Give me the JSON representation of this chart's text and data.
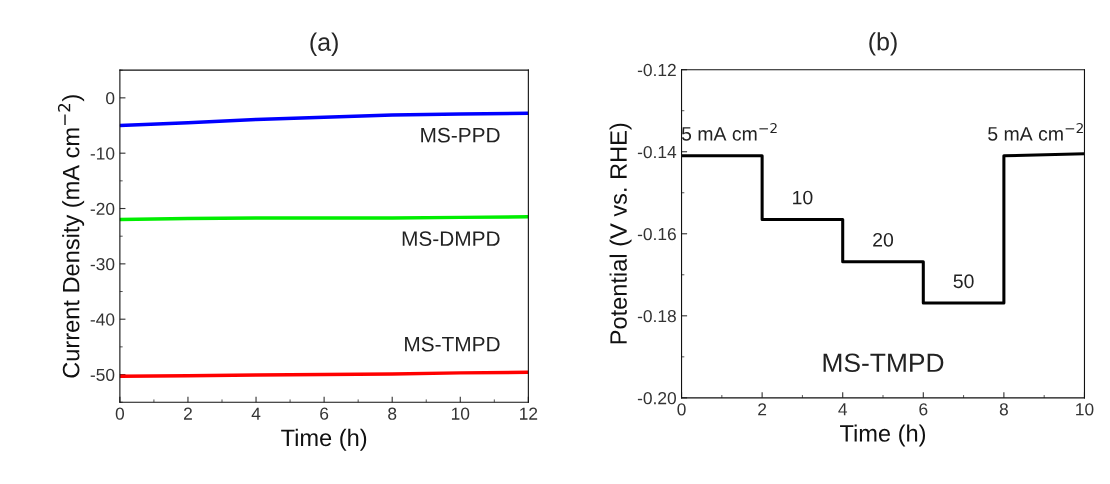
{
  "chart_data": [
    {
      "type": "line",
      "title": "(a)",
      "xlabel": "Time (h)",
      "ylabel": "Current Density (mA cm$^{−2}$)",
      "xlim": [
        0,
        12
      ],
      "xticks": [
        0,
        2,
        4,
        6,
        8,
        10,
        12
      ],
      "ylim": [
        -55,
        5
      ],
      "yticks": [
        -50,
        -40,
        -30,
        -20,
        -10,
        0
      ],
      "grid": false,
      "legend": false,
      "x": [
        0,
        2,
        4,
        6,
        8,
        10,
        12
      ],
      "series": [
        {
          "name": "MS-PPD",
          "color": "#0000ff",
          "values": [
            -5,
            -4.5,
            -3.9,
            -3.5,
            -3.1,
            -2.9,
            -2.8
          ]
        },
        {
          "name": "MS-DMPD",
          "color": "#00ee00",
          "values": [
            -22,
            -21.8,
            -21.7,
            -21.7,
            -21.7,
            -21.6,
            -21.5
          ]
        },
        {
          "name": "MS-TMPD",
          "color": "#ff0000",
          "values": [
            -50.3,
            -50.2,
            -50.1,
            -50,
            -49.9,
            -49.7,
            -49.6
          ]
        }
      ]
    },
    {
      "type": "line",
      "title": "(b)",
      "xlabel": "Time (h)",
      "ylabel": "Potential (V vs. RHE)",
      "xlim": [
        0,
        10
      ],
      "xticks": [
        0,
        2,
        4,
        6,
        8,
        10
      ],
      "ylim": [
        -0.2,
        -0.12
      ],
      "yticks": [
        {
          "value": -0.2,
          "label": "-0.20"
        },
        {
          "value": -0.18,
          "label": "-0.18"
        },
        {
          "value": -0.16,
          "label": "-0.16"
        },
        {
          "value": -0.14,
          "label": "-0.14"
        },
        {
          "value": -0.12,
          "label": "-0.12"
        }
      ],
      "grid": false,
      "legend": false,
      "series": [
        {
          "name": "MS-TMPD",
          "color": "#000000",
          "x": [
            0,
            2,
            2,
            4,
            4,
            6,
            6,
            8,
            8,
            10
          ],
          "values": [
            -0.141,
            -0.141,
            -0.1565,
            -0.1565,
            -0.1668,
            -0.1668,
            -0.1769,
            -0.1769,
            -0.141,
            -0.1405
          ]
        }
      ],
      "annotations": [
        {
          "text": "5 mA cm$^{−2}$",
          "x": 1.2,
          "y": -0.141
        },
        {
          "text": "10",
          "x": 3,
          "y": -0.1565
        },
        {
          "text": "20",
          "x": 5,
          "y": -0.1668
        },
        {
          "text": "50",
          "x": 7,
          "y": -0.1769
        },
        {
          "text": "5 mA cm$^{−2}$",
          "x": 8.8,
          "y": -0.141
        }
      ]
    }
  ]
}
